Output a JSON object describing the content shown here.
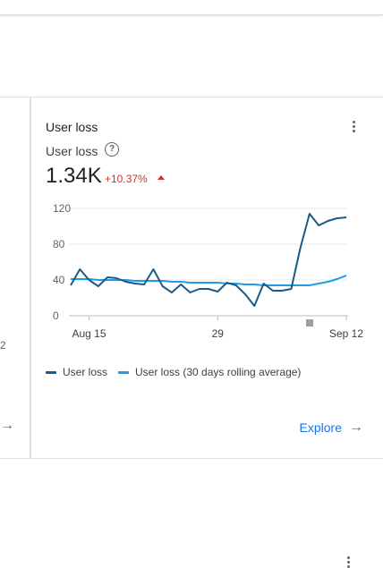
{
  "left_card": {
    "tick_fragment": "2",
    "arrow": "→"
  },
  "card": {
    "title": "User loss",
    "metric_label": "User loss",
    "help_glyph": "?",
    "value": "1.34K",
    "change": "+10.37%",
    "change_color": "#d93025",
    "explore_label": "Explore",
    "explore_arrow": "→",
    "icons": [
      "more-vert-icon",
      "help-icon",
      "arrow-up-icon",
      "arrow-right-icon"
    ]
  },
  "legend": {
    "items": [
      {
        "label": "User loss",
        "color": "#1a5b88"
      },
      {
        "label": "User loss (30 days rolling average)",
        "color": "#1e9be9"
      }
    ]
  },
  "chart_data": {
    "type": "line",
    "x": [
      "Aug 13",
      "Aug 14",
      "Aug 15",
      "Aug 16",
      "Aug 17",
      "Aug 18",
      "Aug 19",
      "Aug 20",
      "Aug 21",
      "Aug 22",
      "Aug 23",
      "Aug 24",
      "Aug 25",
      "Aug 26",
      "Aug 27",
      "Aug 28",
      "Aug 29",
      "Aug 30",
      "Aug 31",
      "Sep 1",
      "Sep 2",
      "Sep 3",
      "Sep 4",
      "Sep 5",
      "Sep 6",
      "Sep 7",
      "Sep 8",
      "Sep 9",
      "Sep 10",
      "Sep 11",
      "Sep 12"
    ],
    "x_tick_labels": [
      "Aug 15",
      "29",
      "Sep 12"
    ],
    "x_tick_index": [
      2,
      16,
      30
    ],
    "y_ticks": [
      0,
      40,
      80,
      120
    ],
    "ylim": [
      0,
      120
    ],
    "series": [
      {
        "name": "User loss",
        "color": "#1a5b88",
        "values": [
          34,
          52,
          40,
          33,
          43,
          42,
          38,
          36,
          35,
          52,
          33,
          26,
          35,
          26,
          30,
          30,
          27,
          37,
          34,
          24,
          11,
          36,
          28,
          28,
          30,
          76,
          114,
          101,
          106,
          109,
          110
        ]
      },
      {
        "name": "User loss (30 days rolling average)",
        "color": "#1e9be9",
        "values": [
          41,
          41,
          41,
          40,
          40,
          40,
          40,
          39,
          39,
          39,
          39,
          38,
          38,
          37,
          37,
          37,
          37,
          36,
          36,
          35,
          35,
          34,
          34,
          34,
          34,
          34,
          34,
          36,
          38,
          41,
          45
        ]
      }
    ],
    "grid": true,
    "legend_position": "bottom"
  }
}
